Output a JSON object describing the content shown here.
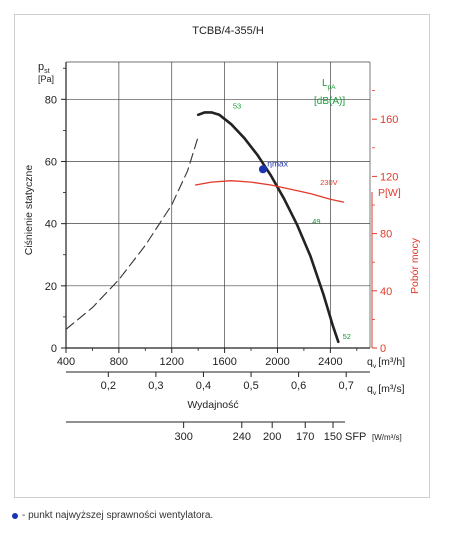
{
  "chart_data": {
    "type": "line",
    "title": "TCBB/4-355/H",
    "xlabel": "Wydajność",
    "ylabel": "Ciśnienie statyczne",
    "y_unit_symbol": "p",
    "y_unit_sub": "st",
    "y_unit": "[Pa]",
    "y2label": "Pobór mocy",
    "y2_unit": "P[W]",
    "lpa_symbol": "L",
    "lpa_sub": "pA",
    "lpa_unit": "[dB(A)]",
    "x_axis_m3h": {
      "label_symbol": "q",
      "label_sub": "v",
      "label_unit": "[m³/h]",
      "ticks": [
        "400",
        "800",
        "1200",
        "1600",
        "2000",
        "2400"
      ],
      "range": [
        400,
        2700
      ]
    },
    "x_axis_m3s": {
      "label_symbol": "q",
      "label_sub": "v",
      "label_unit": "[m³/s]",
      "ticks": [
        {
          "label": "0,2",
          "value": 0.2
        },
        {
          "label": "0,3",
          "value": 0.3
        },
        {
          "label": "0,4",
          "value": 0.4
        },
        {
          "label": "0,5",
          "value": 0.5
        },
        {
          "label": "0,6",
          "value": 0.6
        },
        {
          "label": "0,7",
          "value": 0.7
        }
      ]
    },
    "sfp_axis": {
      "label": "SFP",
      "unit": "[W/m³/s]",
      "ticks": [
        {
          "label": "300",
          "at_m3h": 1290
        },
        {
          "label": "240",
          "at_m3h": 1730
        },
        {
          "label": "200",
          "at_m3h": 1960
        },
        {
          "label": "170",
          "at_m3h": 2210
        },
        {
          "label": "150",
          "at_m3h": 2420
        }
      ]
    },
    "y_left": {
      "ticks": [
        "0",
        "20",
        "40",
        "60",
        "80"
      ],
      "range": [
        0,
        92
      ]
    },
    "y_right": {
      "ticks": [
        "0",
        "40",
        "80",
        "120",
        "160"
      ],
      "range": [
        0,
        200
      ],
      "color": "#e23a2a"
    },
    "grid": true,
    "series": [
      {
        "axis": "left",
        "style": "dashed",
        "color": "#333333",
        "x": [
          400,
          600,
          800,
          1000,
          1200,
          1320,
          1400
        ],
        "y": [
          6,
          13,
          22,
          33,
          46,
          57,
          68
        ]
      },
      {
        "axis": "left",
        "style": "solid",
        "color": "#222222",
        "x": [
          1400,
          1450,
          1500,
          1560,
          1650,
          1750,
          1850,
          1950,
          2050,
          2150,
          2250,
          2350,
          2420,
          2460
        ],
        "y": [
          75,
          75.8,
          75.8,
          75,
          72,
          67.5,
          62,
          55.5,
          48,
          39.5,
          29.5,
          17,
          7,
          2
        ]
      },
      {
        "axis": "right",
        "style": "solid",
        "color": "#e23a2a",
        "x": [
          1380,
          1500,
          1650,
          1800,
          1950,
          2100,
          2250,
          2400,
          2500
        ],
        "y": [
          114,
          116,
          117,
          116,
          114,
          111,
          108,
          104,
          102
        ]
      }
    ],
    "annotations": [
      {
        "text": "53",
        "x": 1640,
        "y": 76,
        "color": "#1a9a3a"
      },
      {
        "text": "49",
        "x": 2240,
        "y": 39,
        "color": "#1a9a3a"
      },
      {
        "text": "52",
        "x": 2470,
        "y": 2,
        "color": "#1a9a3a"
      },
      {
        "text": "230V",
        "x": 2300,
        "y_right": 112,
        "color": "#e23a2a"
      },
      {
        "text": "ηmax",
        "x": 1900,
        "y": 57.5,
        "color": "#1a33b0"
      }
    ],
    "max_efficiency_point": {
      "x": 1890,
      "y": 57.5,
      "color": "#1a33b0"
    }
  },
  "note": {
    "text": "- punkt najwyższej sprawności wentylatora."
  }
}
